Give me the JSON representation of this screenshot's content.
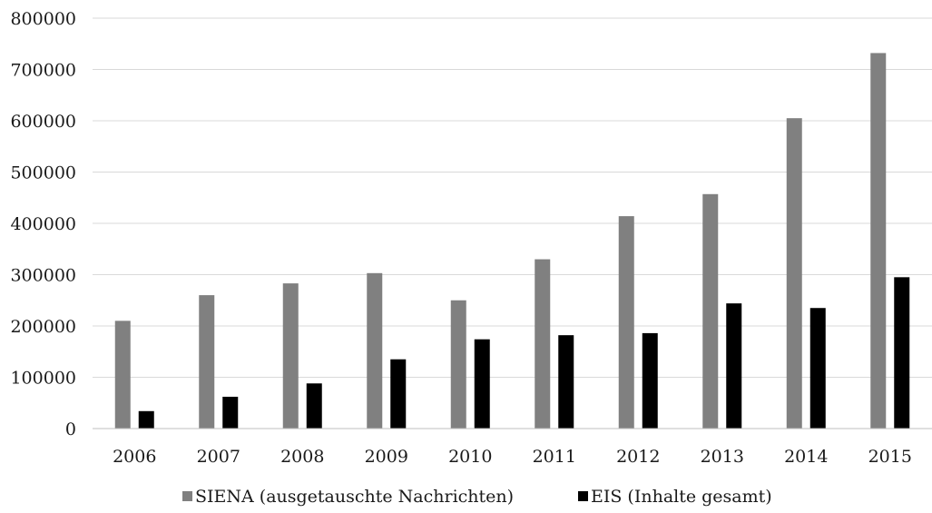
{
  "chart_data": {
    "type": "bar",
    "title": "",
    "xlabel": "",
    "ylabel": "",
    "categories": [
      "2006",
      "2007",
      "2008",
      "2009",
      "2010",
      "2011",
      "2012",
      "2013",
      "2014",
      "2015"
    ],
    "series": [
      {
        "name": "SIENA (ausgetauschte Nachrichten)",
        "color": "#808080",
        "values": [
          210000,
          260000,
          283000,
          303000,
          250000,
          330000,
          414000,
          457000,
          605000,
          732000
        ]
      },
      {
        "name": "EIS (Inhalte gesamt)",
        "color": "#000000",
        "values": [
          34000,
          62000,
          88000,
          135000,
          174000,
          182000,
          186000,
          244000,
          235000,
          295000
        ]
      }
    ],
    "ylim": [
      0,
      800000
    ],
    "yticks": [
      "0",
      "100000",
      "200000",
      "300000",
      "400000",
      "500000",
      "600000",
      "700000",
      "800000"
    ],
    "grid": true,
    "legend_position": "bottom"
  }
}
